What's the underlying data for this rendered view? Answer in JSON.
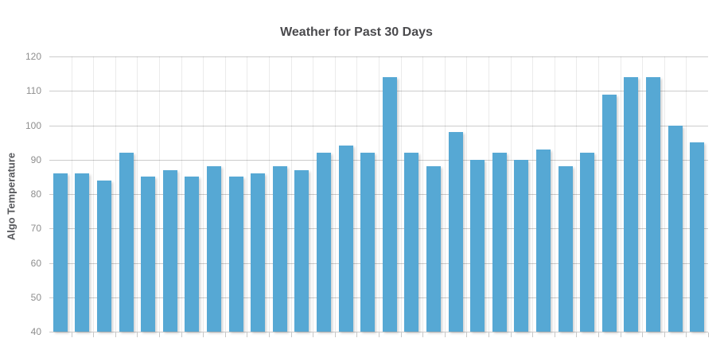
{
  "chart": {
    "title": "Weather for Past 30 Days",
    "y_axis_label": "Algo Temperature"
  },
  "chart_data": {
    "type": "bar",
    "title": "Weather for Past 30 Days",
    "xlabel": "",
    "ylabel": "Algo Temperature",
    "values": [
      86,
      86,
      84,
      92,
      85,
      87,
      85,
      88,
      85,
      86,
      88,
      87,
      92,
      94,
      92,
      114,
      92,
      88,
      98,
      90,
      92,
      90,
      93,
      88,
      92,
      109,
      114,
      114,
      100,
      95
    ],
    "x_tick_labels": [],
    "yticks": [
      40,
      50,
      60,
      70,
      80,
      90,
      100,
      110,
      120
    ],
    "ylim": [
      40,
      120
    ],
    "grid": true,
    "legend_position": "none",
    "bar_color": "#56a8d4",
    "gridline_color": "#cccccc",
    "title_color": "#4a4a4d",
    "tick_label_color": "#8e8e8e"
  }
}
